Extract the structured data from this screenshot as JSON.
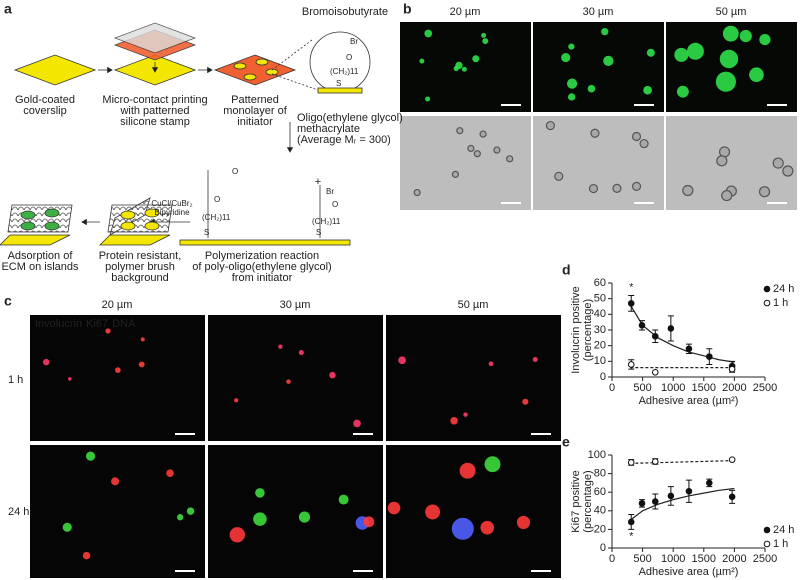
{
  "panel_a": {
    "label": "a",
    "reagent": "Bromoisobutyrate",
    "steps": [
      [
        "Gold-coated",
        "coverslip"
      ],
      [
        "Micro-contact printing",
        "with patterned",
        "silicone stamp"
      ],
      [
        "Patterned",
        "monolayer of",
        "initiator"
      ],
      [
        "Polymerization reaction",
        "of poly-oligo(ethylene glycol)",
        "from initiator"
      ],
      [
        "Protein resistant,",
        "polymer brush",
        "background"
      ],
      [
        "Adsorption of",
        "ECM on islands"
      ]
    ],
    "monomer": [
      "Oligo(ethylene glycol)",
      "methacrylate",
      "(Average Mᵣ = 300)"
    ],
    "catalyst": [
      "CuCl/CuBr₂",
      "Bipyridine"
    ],
    "chem": {
      "linker": "(CH₂)11",
      "sulfur": "S",
      "bromine": "Br",
      "oxygen": "O",
      "plus": "+"
    }
  },
  "panel_b": {
    "label": "b",
    "columns": [
      "20 µm",
      "30 µm",
      "50 µm"
    ]
  },
  "panel_c": {
    "label": "c",
    "columns": [
      "20 µm",
      "30 µm",
      "50 µm"
    ],
    "rows": [
      "1 h",
      "24 h"
    ],
    "stains": [
      {
        "name": "Involucrin",
        "color": "#3ddc3d"
      },
      {
        "name": "Ki67",
        "color": "#ff3a3a"
      },
      {
        "name": "DNA",
        "color": "#5060ff"
      }
    ]
  },
  "chart_data": [
    {
      "type": "scatter",
      "label": "d",
      "ylabel": [
        "Involucrin positive",
        "(percentage)"
      ],
      "xlabel": "Adhesive area (µm²)",
      "xlim": [
        0,
        2500
      ],
      "xticks": [
        0,
        500,
        1000,
        1500,
        2000,
        2500
      ],
      "ylim": [
        0,
        60
      ],
      "yticks": [
        0,
        10,
        20,
        30,
        40,
        50,
        60
      ],
      "legend": "upper right",
      "series": [
        {
          "name": "24 h",
          "marker": "filled",
          "color": "#111111",
          "x": [
            314,
            490,
            707,
            962,
            1257,
            1590,
            1963
          ],
          "values": [
            47,
            33,
            26,
            31,
            18,
            13,
            7
          ],
          "errors": [
            5,
            3,
            4,
            8,
            3,
            5,
            3
          ]
        },
        {
          "name": "1 h",
          "marker": "open",
          "color": "#111111",
          "x": [
            314,
            707,
            1963
          ],
          "values": [
            8,
            3,
            5
          ],
          "errors": [
            3,
            0,
            2
          ]
        }
      ],
      "fits": [
        {
          "style": "solid",
          "x": [
            300,
            500,
            750,
            1000,
            1250,
            1500,
            1750,
            2000
          ],
          "values": [
            46,
            33,
            25,
            20,
            16,
            13.5,
            11,
            9.5
          ]
        },
        {
          "style": "dashed",
          "x": [
            300,
            2000
          ],
          "values": [
            6,
            6
          ]
        }
      ],
      "annotations": [
        {
          "text": "*",
          "x": 314,
          "y": 57
        }
      ]
    },
    {
      "type": "scatter",
      "label": "e",
      "ylabel": [
        "Ki67 positive",
        "(percentage)"
      ],
      "xlabel": "Adhesive area (µm²)",
      "xlim": [
        0,
        2500
      ],
      "xticks": [
        0,
        500,
        1000,
        1500,
        2000,
        2500
      ],
      "ylim": [
        0,
        100
      ],
      "yticks": [
        0,
        20,
        40,
        60,
        80,
        100
      ],
      "legend": "lower right",
      "series": [
        {
          "name": "24 h",
          "marker": "filled",
          "color": "#111111",
          "x": [
            314,
            490,
            707,
            962,
            1257,
            1590,
            1963
          ],
          "values": [
            28,
            48,
            50,
            56,
            61,
            70,
            55
          ],
          "errors": [
            8,
            4,
            8,
            10,
            12,
            4,
            7
          ]
        },
        {
          "name": "1 h",
          "marker": "open",
          "color": "#111111",
          "x": [
            314,
            707,
            1963
          ],
          "values": [
            92,
            93,
            95
          ],
          "errors": [
            3,
            3,
            0
          ]
        }
      ],
      "fits": [
        {
          "style": "solid",
          "x": [
            300,
            500,
            750,
            1000,
            1250,
            1500,
            1750,
            2000
          ],
          "values": [
            30,
            40,
            47,
            52,
            56,
            59,
            62,
            64
          ]
        },
        {
          "style": "dashed",
          "x": [
            300,
            2000
          ],
          "values": [
            91,
            94
          ]
        }
      ],
      "annotations": [
        {
          "text": "*",
          "x": 314,
          "y": 12
        }
      ]
    }
  ]
}
